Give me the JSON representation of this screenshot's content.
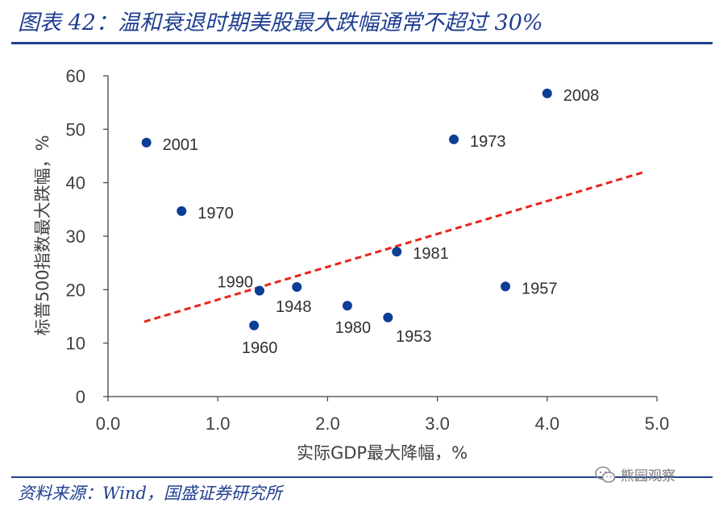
{
  "header": {
    "title": "图表 42：温和衰退时期美股最大跌幅通常不超过 30%"
  },
  "footer": {
    "source": "资料来源：Wind，国盛证券研究所",
    "watermark_text": "熊园观察",
    "watermark_icon": "wechat-icon"
  },
  "chart_data": {
    "type": "scatter",
    "title": "温和衰退时期美股最大跌幅通常不超过 30%",
    "xlabel": "实际GDP最大降幅，%",
    "ylabel": "标普500指数最大跌幅，%",
    "xlim": [
      0,
      5
    ],
    "ylim": [
      0,
      60
    ],
    "xticks": [
      "0.0",
      "1.0",
      "2.0",
      "3.0",
      "4.0",
      "5.0"
    ],
    "yticks": [
      "0",
      "10",
      "20",
      "30",
      "40",
      "50",
      "60"
    ],
    "grid": false,
    "marker_color": "#0d3e96",
    "trendline": {
      "style": "dashed",
      "color": "#e8251b",
      "x": [
        0.33,
        4.9
      ],
      "y": [
        14.0,
        42.1
      ]
    },
    "points": [
      {
        "label": "2001",
        "x": 0.35,
        "y": 47.5,
        "label_pos": "right"
      },
      {
        "label": "1970",
        "x": 0.67,
        "y": 34.7,
        "label_pos": "right"
      },
      {
        "label": "1990",
        "x": 1.38,
        "y": 19.8,
        "label_pos": "left-above"
      },
      {
        "label": "1960",
        "x": 1.33,
        "y": 13.3,
        "label_pos": "below"
      },
      {
        "label": "1948",
        "x": 1.72,
        "y": 20.5,
        "label_pos": "below-left"
      },
      {
        "label": "1980",
        "x": 2.18,
        "y": 17.0,
        "label_pos": "below"
      },
      {
        "label": "1953",
        "x": 2.55,
        "y": 14.8,
        "label_pos": "below-right"
      },
      {
        "label": "1981",
        "x": 2.63,
        "y": 27.1,
        "label_pos": "right"
      },
      {
        "label": "1973",
        "x": 3.15,
        "y": 48.1,
        "label_pos": "right"
      },
      {
        "label": "1957",
        "x": 3.62,
        "y": 20.6,
        "label_pos": "right"
      },
      {
        "label": "2008",
        "x": 4.0,
        "y": 56.7,
        "label_pos": "right"
      }
    ]
  }
}
